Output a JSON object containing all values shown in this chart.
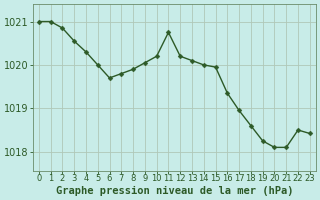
{
  "x": [
    0,
    1,
    2,
    3,
    4,
    5,
    6,
    7,
    8,
    9,
    10,
    11,
    12,
    13,
    14,
    15,
    16,
    17,
    18,
    19,
    20,
    21,
    22,
    23
  ],
  "y": [
    1021.0,
    1021.0,
    1020.85,
    1020.55,
    1020.3,
    1020.0,
    1019.7,
    1019.8,
    1019.9,
    1020.05,
    1020.2,
    1020.75,
    1020.2,
    1020.1,
    1020.0,
    1019.95,
    1019.35,
    1018.95,
    1018.6,
    1018.25,
    1018.1,
    1018.1,
    1018.5,
    1018.42
  ],
  "line_color": "#2d5a27",
  "marker_color": "#2d5a27",
  "bg_color": "#c8ece8",
  "grid_color": "#b0c8b8",
  "axis_label_color": "#2d5a27",
  "tick_color": "#2d5a27",
  "spine_color": "#6a8c6a",
  "xlabel": "Graphe pression niveau de la mer (hPa)",
  "ylim": [
    1017.55,
    1021.4
  ],
  "yticks": [
    1018,
    1019,
    1020,
    1021
  ],
  "xticks": [
    0,
    1,
    2,
    3,
    4,
    5,
    6,
    7,
    8,
    9,
    10,
    11,
    12,
    13,
    14,
    15,
    16,
    17,
    18,
    19,
    20,
    21,
    22,
    23
  ],
  "xtick_labels": [
    "0",
    "1",
    "2",
    "3",
    "4",
    "5",
    "6",
    "7",
    "8",
    "9",
    "10",
    "11",
    "12",
    "13",
    "14",
    "15",
    "16",
    "17",
    "18",
    "19",
    "20",
    "21",
    "22",
    "23"
  ],
  "linewidth": 1.0,
  "markersize": 2.5,
  "fontsize_xlabel": 7.5,
  "fontsize_ytick": 7,
  "fontsize_xtick": 6
}
